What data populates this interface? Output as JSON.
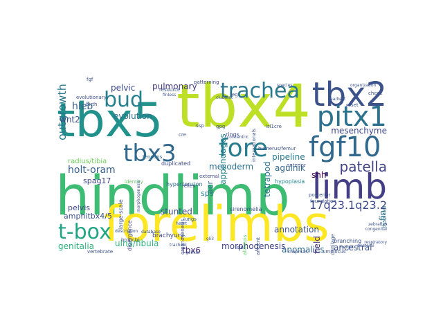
{
  "words": [
    {
      "text": "tbx4",
      "color": "#bddf26"
    },
    {
      "text": "hindlimb",
      "color": "#3fbc73"
    },
    {
      "text": "tbx5",
      "color": "#21918c"
    },
    {
      "text": "forelimbs",
      "color": "#fde725"
    },
    {
      "text": "limb",
      "color": "#433e85"
    },
    {
      "text": "tbx2",
      "color": "#3b528b"
    },
    {
      "text": "pitx1",
      "color": "#2c728e"
    },
    {
      "text": "fgf10",
      "color": "#31688e"
    },
    {
      "text": "fore",
      "color": "#287c8e"
    },
    {
      "text": "trachea",
      "color": "#2a788e"
    },
    {
      "text": "bud",
      "color": "#27808e"
    },
    {
      "text": "tbx3",
      "color": "#31688e"
    },
    {
      "text": "t-box",
      "color": "#21a585"
    },
    {
      "text": "patella",
      "color": "#414487"
    },
    {
      "text": "17q23.1q23.2",
      "color": "#3e4989"
    },
    {
      "text": "holt-oram",
      "color": "#35608d"
    },
    {
      "text": "outgrowth",
      "color": "#2a788e"
    },
    {
      "text": "hleb",
      "color": "#355f8d"
    },
    {
      "text": "wnt2",
      "color": "#3b528b"
    },
    {
      "text": "radius/tibia",
      "color": "#6ece58"
    },
    {
      "text": "spag17",
      "color": "#414487"
    },
    {
      "text": "genitalia",
      "color": "#2eb37c"
    },
    {
      "text": "ulna/fibula",
      "color": "#2eb37c"
    },
    {
      "text": "amphitbx4/5",
      "color": "#3b528b"
    },
    {
      "text": "pelvis",
      "color": "#3e4989"
    },
    {
      "text": "mesenchyme",
      "color": "#3e4989"
    },
    {
      "text": "morphogenesis",
      "color": "#404688"
    },
    {
      "text": "anomalies",
      "color": "#31688e"
    },
    {
      "text": "ancestral",
      "color": "#3b528b"
    },
    {
      "text": "evolution",
      "color": "#2d708e"
    },
    {
      "text": "pulmonary",
      "color": "#453781"
    },
    {
      "text": "pelvic",
      "color": "#3e4989"
    },
    {
      "text": "mesoderm",
      "color": "#2c728e"
    },
    {
      "text": "appendages",
      "color": "#25848e"
    },
    {
      "text": "tetrapod",
      "color": "#2c728e"
    },
    {
      "text": "pipeline",
      "color": "#2a788e"
    },
    {
      "text": "agulnik",
      "color": "#31688e"
    },
    {
      "text": "annotation",
      "color": "#3b528b"
    },
    {
      "text": "stunted",
      "color": "#3e4989"
    },
    {
      "text": "brachyury",
      "color": "#3e4989"
    },
    {
      "text": "field",
      "color": "#46327e"
    },
    {
      "text": "fin",
      "color": "#2c728e"
    },
    {
      "text": "tbx6",
      "color": "#482878"
    },
    {
      "text": "shh",
      "color": "#440154"
    },
    {
      "text": "aer",
      "color": "#31688e"
    },
    {
      "text": "sps",
      "color": "#2a788e"
    },
    {
      "text": "identity",
      "color": "#5ec962"
    },
    {
      "text": "hypertension",
      "color": "#31688e"
    },
    {
      "text": "large-scale",
      "color": "#3b528b"
    },
    {
      "text": "divergence",
      "color": "#404688"
    },
    {
      "text": "hypoplasia",
      "color": "#25848e"
    },
    {
      "text": "dysplasia",
      "color": "#2c728e"
    },
    {
      "text": "duplicated",
      "color": "#3e4989"
    },
    {
      "text": "patterning",
      "color": "#3e4989"
    },
    {
      "text": "tendons",
      "color": "#31688e"
    },
    {
      "text": "resource",
      "color": "#3b528b"
    },
    {
      "text": "finless",
      "color": "#3b528b"
    },
    {
      "text": "rings",
      "color": "#3e4989"
    },
    {
      "text": "external",
      "color": "#3e4989"
    },
    {
      "text": "lungs",
      "color": "#31688e"
    },
    {
      "text": "relies",
      "color": "#3e4989"
    },
    {
      "text": "sirenomelia",
      "color": "#3b528b"
    },
    {
      "text": "allantois",
      "color": "#5ec962"
    },
    {
      "text": "ancient",
      "color": "#3b528b"
    },
    {
      "text": "branching",
      "color": "#3b528b"
    },
    {
      "text": "cartilage",
      "color": "#3b528b"
    },
    {
      "text": "islet",
      "color": "#3b528b"
    },
    {
      "text": "isl1cre",
      "color": "#3b528b"
    },
    {
      "text": "humerus/femur",
      "color": "#3b528b"
    },
    {
      "text": "anterior",
      "color": "#3b528b"
    },
    {
      "text": "posterior",
      "color": "#3b528b"
    },
    {
      "text": "foundation",
      "color": "#3b528b"
    },
    {
      "text": "umbilicus",
      "color": "#3b528b"
    },
    {
      "text": "chapman",
      "color": "#3b528b"
    },
    {
      "text": "vertebrate",
      "color": "#3b528b"
    },
    {
      "text": "organogenesis",
      "color": "#3b528b"
    },
    {
      "text": "internationals",
      "color": "#3b528b"
    },
    {
      "text": "birth",
      "color": "#3b528b"
    },
    {
      "text": "evolutionary",
      "color": "#3b528b"
    },
    {
      "text": "bronchi",
      "color": "#3b528b"
    },
    {
      "text": "fgf",
      "color": "#3b528b"
    },
    {
      "text": "gpg",
      "color": "#3b528b"
    },
    {
      "text": "cre",
      "color": "#3b528b"
    },
    {
      "text": "ssp",
      "color": "#3b528b"
    },
    {
      "text": "leg",
      "color": "#3b528b"
    },
    {
      "text": "gli3",
      "color": "#3b528b"
    },
    {
      "text": "golfkia",
      "color": "#3b528b"
    },
    {
      "text": "tracheal",
      "color": "#3b528b"
    },
    {
      "text": "heart",
      "color": "#3b528b"
    },
    {
      "text": "height",
      "color": "#3b528b"
    },
    {
      "text": "pectoral",
      "color": "#3b528b"
    },
    {
      "text": "congenital",
      "color": "#3b528b"
    },
    {
      "text": "zebrafish",
      "color": "#3b528b"
    },
    {
      "text": "morphogenesis",
      "color": "#3b528b"
    },
    {
      "text": "clubfoot",
      "color": "#3b528b"
    },
    {
      "text": "earliest",
      "color": "#3b528b"
    },
    {
      "text": "reset",
      "color": "#3b528b"
    },
    {
      "text": "check",
      "color": "#3b528b"
    },
    {
      "text": "species",
      "color": "#3b528b"
    },
    {
      "text": "organization",
      "color": "#3b528b"
    },
    {
      "text": "respiratory",
      "color": "#3b528b"
    },
    {
      "text": "concentric",
      "color": "#3b528b"
    },
    {
      "text": "database",
      "color": "#3b528b"
    },
    {
      "text": "description",
      "color": "#3b528b"
    }
  ]
}
